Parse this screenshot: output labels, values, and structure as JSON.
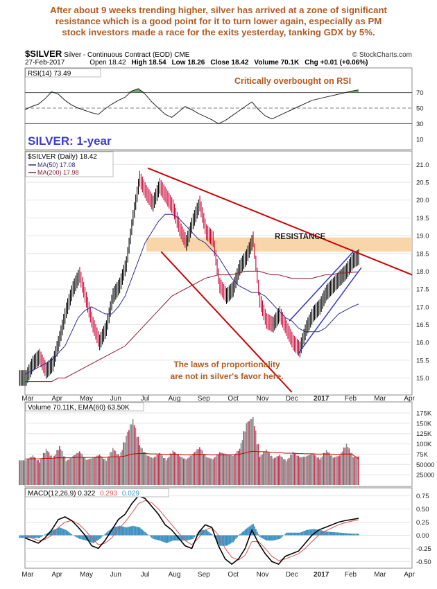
{
  "headline": {
    "line1": "After about 9 weeks trending higher, silver has arrived at a zone of significant",
    "line2": "resistance which is a good point for it to turn lower again, especially as PM",
    "line3": "stock investors made a race for the exits yesterday, tanking GDX by 5%."
  },
  "header": {
    "symbol": "$SILVER",
    "name": "Silver - Continuous Contract (EOD)",
    "exchange": "CME",
    "logo": "© StockCharts.com",
    "date": "27-Feb-2017",
    "open": "Open 18.42",
    "high": "High 18.54",
    "low": "Low 18.26",
    "close": "Close 18.42",
    "volume": "Volume 70.1K",
    "chg": "Chg +0.01 (+0.06%)"
  },
  "colors": {
    "text_annotation": "#b35a1f",
    "blue_title": "#3a3ad6",
    "price_up": "#000000",
    "price_down": "#cc0033",
    "ma50": "#2b2b8f",
    "ma200": "#8b1a2a",
    "trendline": "#cc0000",
    "channel": "#3333cc",
    "resistance_band": "#f7d2a0",
    "macd_line": "#000000",
    "signal_line": "#e05050",
    "histogram": "#3a8fc0",
    "volume_bar": "#8a8a8a"
  },
  "chart_data": [
    {
      "type": "line",
      "panel": "rsi",
      "legend": "RSI(14) 73.49",
      "annotation": "Critically overbought on RSI",
      "ylim": [
        0,
        100
      ],
      "yticks": [
        "70",
        "50",
        "30",
        "10"
      ],
      "ytick_values": [
        70,
        50,
        30,
        10
      ],
      "reference_lines": [
        70,
        50,
        30
      ],
      "x": [
        0,
        5,
        10,
        15,
        20,
        25,
        30,
        35,
        40,
        45,
        50,
        55,
        60,
        65,
        70,
        75,
        80,
        85,
        90,
        95,
        100,
        105,
        110,
        115,
        120,
        125,
        130,
        135,
        140,
        145,
        150,
        155,
        160,
        165,
        170,
        175,
        180,
        185,
        190,
        195,
        200,
        205,
        210,
        215,
        220,
        225,
        230,
        235,
        240,
        245,
        250
      ],
      "values": [
        48,
        52,
        55,
        62,
        71,
        68,
        60,
        54,
        50,
        47,
        44,
        42,
        49,
        55,
        60,
        64,
        72,
        75,
        68,
        58,
        50,
        42,
        38,
        45,
        52,
        48,
        43,
        39,
        35,
        30,
        34,
        40,
        46,
        52,
        58,
        48,
        40,
        36,
        40,
        44,
        48,
        52,
        56,
        60,
        62,
        64,
        66,
        68,
        70,
        72,
        73.49
      ]
    },
    {
      "type": "line",
      "panel": "price",
      "title": "SILVER: 1-year",
      "legend": [
        "$SILVER (Daily) 18.42",
        "MA(50) 17.08",
        "MA(200) 17.98"
      ],
      "annotation_resistance": "RESISTANCE",
      "annotation_bottom": [
        "The laws of proportionality",
        "are not in silver's favor here."
      ],
      "ylim": [
        14.6,
        21.3
      ],
      "yticks": [
        "21.0",
        "20.5",
        "20.0",
        "19.5",
        "19.0",
        "18.5",
        "18.0",
        "17.5",
        "17.0",
        "16.5",
        "16.0",
        "15.5",
        "15.0"
      ],
      "ytick_values": [
        21.0,
        20.5,
        20.0,
        19.5,
        19.0,
        18.5,
        18.0,
        17.5,
        17.0,
        16.5,
        16.0,
        15.5,
        15.0
      ],
      "xlim": [
        0,
        290
      ],
      "x": [
        0,
        5,
        10,
        15,
        20,
        25,
        30,
        35,
        40,
        45,
        50,
        55,
        60,
        65,
        70,
        75,
        80,
        85,
        90,
        95,
        100,
        105,
        110,
        115,
        120,
        125,
        130,
        135,
        140,
        145,
        150,
        155,
        160,
        165,
        170,
        175,
        180,
        185,
        190,
        195,
        200,
        205,
        210,
        215,
        220,
        225,
        230,
        235,
        240,
        245,
        250
      ],
      "close": [
        15.0,
        15.4,
        15.6,
        15.2,
        15.4,
        16.1,
        16.9,
        17.5,
        17.9,
        17.2,
        16.5,
        16.0,
        16.4,
        17.3,
        17.6,
        18.2,
        19.5,
        20.6,
        20.2,
        19.9,
        20.4,
        20.1,
        19.8,
        19.2,
        18.8,
        19.4,
        19.9,
        19.1,
        18.9,
        17.6,
        17.3,
        17.5,
        18.1,
        18.4,
        18.9,
        17.2,
        16.6,
        16.5,
        16.8,
        16.4,
        16.0,
        15.8,
        16.4,
        16.8,
        17.0,
        17.4,
        17.6,
        17.8,
        18.0,
        18.3,
        18.42
      ],
      "ma50": [
        15.1,
        15.2,
        15.3,
        15.4,
        15.5,
        15.7,
        15.9,
        16.3,
        16.7,
        16.9,
        17.0,
        16.9,
        16.8,
        16.8,
        17.0,
        17.3,
        17.8,
        18.3,
        18.8,
        19.1,
        19.4,
        19.6,
        19.6,
        19.5,
        19.3,
        19.1,
        18.9,
        18.8,
        18.6,
        18.4,
        18.1,
        17.8,
        17.6,
        17.5,
        17.4,
        17.4,
        17.3,
        17.1,
        16.9,
        16.7,
        16.6,
        16.4,
        16.3,
        16.3,
        16.3,
        16.4,
        16.6,
        16.8,
        16.9,
        17.0,
        17.08
      ],
      "ma200": [
        14.9,
        14.9,
        14.9,
        14.9,
        14.9,
        15.0,
        15.0,
        15.1,
        15.2,
        15.3,
        15.4,
        15.5,
        15.6,
        15.7,
        15.8,
        15.9,
        16.1,
        16.3,
        16.5,
        16.7,
        16.9,
        17.1,
        17.3,
        17.4,
        17.5,
        17.6,
        17.7,
        17.8,
        17.85,
        17.9,
        17.9,
        17.9,
        17.95,
        18.0,
        18.0,
        18.0,
        17.95,
        17.9,
        17.9,
        17.85,
        17.8,
        17.8,
        17.8,
        17.8,
        17.85,
        17.9,
        17.9,
        17.95,
        17.95,
        17.97,
        17.98
      ],
      "resistance_zone": [
        18.55,
        18.95
      ],
      "downtrend_upper": {
        "from": [
          92,
          20.9
        ],
        "to": [
          290,
          17.9
        ]
      },
      "downtrend_lower": {
        "from": [
          102,
          18.55
        ],
        "to": [
          200,
          14.6
        ]
      },
      "channel_lower": {
        "from": [
          205,
          15.7
        ],
        "to": [
          252,
          18.1
        ]
      },
      "channel_upper": {
        "from": [
          198,
          16.6
        ],
        "to": [
          246,
          18.55
        ]
      }
    },
    {
      "type": "bar",
      "panel": "volume",
      "legend": "Volume 70.11K, EMA(60) 63.50K",
      "ylim": [
        0,
        175000
      ],
      "yticks": [
        "175K",
        "150K",
        "125K",
        "100K",
        "75K",
        "50000",
        "25000"
      ],
      "ytick_values": [
        175000,
        150000,
        125000,
        100000,
        75000,
        50000,
        25000
      ],
      "x": [
        0,
        5,
        10,
        15,
        20,
        25,
        30,
        35,
        40,
        45,
        50,
        55,
        60,
        65,
        70,
        75,
        80,
        85,
        90,
        95,
        100,
        105,
        110,
        115,
        120,
        125,
        130,
        135,
        140,
        145,
        150,
        155,
        160,
        165,
        170,
        175,
        180,
        185,
        190,
        195,
        200,
        205,
        210,
        215,
        220,
        225,
        230,
        235,
        240,
        245,
        250
      ],
      "values": [
        60000,
        72000,
        55000,
        88000,
        64000,
        95000,
        58000,
        70000,
        82000,
        61000,
        66000,
        74000,
        59000,
        90000,
        68000,
        120000,
        160000,
        97000,
        73000,
        65000,
        78000,
        60000,
        84000,
        70000,
        62000,
        76000,
        92000,
        68000,
        63000,
        80000,
        75000,
        71000,
        88000,
        150000,
        165000,
        69000,
        86000,
        64000,
        73000,
        58000,
        81000,
        67000,
        70000,
        77000,
        62000,
        85000,
        66000,
        72000,
        100000,
        68000,
        70110
      ],
      "ema": [
        63000,
        64000,
        63500,
        65000,
        65000,
        66500,
        66000,
        66500,
        67500,
        67000,
        67000,
        67500,
        67000,
        68500,
        68500,
        70500,
        75000,
        76500,
        76500,
        75500,
        75500,
        74500,
        75000,
        74500,
        73500,
        73500,
        74500,
        74000,
        73000,
        73500,
        73500,
        73500,
        74000,
        78000,
        82000,
        81000,
        81000,
        79500,
        79000,
        77500,
        77500,
        76500,
        76000,
        76000,
        75000,
        75500,
        75000,
        74500,
        75500,
        75000,
        63500
      ]
    },
    {
      "type": "line",
      "panel": "macd",
      "legend": [
        "MACD(12,26,9) 0.322",
        "0.293",
        "0.029"
      ],
      "ylim": [
        -0.6,
        0.85
      ],
      "yticks": [
        "0.75",
        "0.50",
        "0.25",
        "0.00",
        "-0.25",
        "-0.50"
      ],
      "ytick_values": [
        0.75,
        0.5,
        0.25,
        0,
        -0.25,
        -0.5
      ],
      "x": [
        0,
        5,
        10,
        15,
        20,
        25,
        30,
        35,
        40,
        45,
        50,
        55,
        60,
        65,
        70,
        75,
        80,
        85,
        90,
        95,
        100,
        105,
        110,
        115,
        120,
        125,
        130,
        135,
        140,
        145,
        150,
        155,
        160,
        165,
        170,
        175,
        180,
        185,
        190,
        195,
        200,
        205,
        210,
        215,
        220,
        225,
        230,
        235,
        240,
        245,
        250
      ],
      "macd": [
        -0.05,
        -0.1,
        -0.15,
        -0.05,
        0.1,
        0.3,
        0.35,
        0.28,
        0.15,
        0.0,
        -0.2,
        -0.25,
        -0.1,
        0.1,
        0.3,
        0.4,
        0.6,
        0.75,
        0.7,
        0.55,
        0.4,
        0.2,
        0.1,
        -0.05,
        -0.2,
        -0.25,
        0.05,
        0.2,
        0.15,
        -0.2,
        -0.45,
        -0.55,
        -0.45,
        -0.25,
        0.1,
        -0.15,
        -0.35,
        -0.5,
        -0.55,
        -0.4,
        -0.35,
        -0.3,
        -0.15,
        0.0,
        0.1,
        0.15,
        0.2,
        0.25,
        0.28,
        0.3,
        0.322
      ],
      "signal": [
        0.0,
        -0.05,
        -0.1,
        -0.08,
        0.0,
        0.15,
        0.25,
        0.28,
        0.22,
        0.1,
        -0.05,
        -0.18,
        -0.15,
        -0.05,
        0.12,
        0.25,
        0.42,
        0.6,
        0.66,
        0.62,
        0.5,
        0.35,
        0.2,
        0.05,
        -0.1,
        -0.18,
        -0.05,
        0.1,
        0.15,
        0.0,
        -0.25,
        -0.42,
        -0.47,
        -0.38,
        -0.12,
        -0.12,
        -0.25,
        -0.4,
        -0.48,
        -0.45,
        -0.4,
        -0.35,
        -0.25,
        -0.12,
        0.0,
        0.08,
        0.14,
        0.2,
        0.24,
        0.27,
        0.293
      ],
      "histogram": [
        -0.05,
        -0.05,
        -0.05,
        0.03,
        0.1,
        0.15,
        0.1,
        0.0,
        -0.07,
        -0.1,
        -0.15,
        -0.07,
        0.05,
        0.15,
        0.18,
        0.15,
        0.18,
        0.15,
        0.04,
        -0.07,
        -0.1,
        -0.15,
        -0.1,
        -0.1,
        -0.1,
        -0.07,
        0.1,
        0.1,
        0.0,
        -0.2,
        -0.2,
        -0.13,
        0.02,
        0.13,
        0.22,
        -0.03,
        -0.1,
        -0.1,
        -0.07,
        0.05,
        0.05,
        0.05,
        0.1,
        0.12,
        0.1,
        0.07,
        0.06,
        0.05,
        0.04,
        0.03,
        0.029
      ]
    }
  ],
  "x_axis": {
    "labels": [
      "Mar",
      "Apr",
      "May",
      "Jun",
      "Jul",
      "Aug",
      "Sep",
      "Oct",
      "Nov",
      "Dec",
      "2017",
      "Feb",
      "Mar",
      "Apr"
    ],
    "label_x": [
      2,
      24,
      46,
      68,
      90,
      112,
      134,
      156,
      178,
      200,
      222,
      244,
      266,
      288
    ],
    "bold": [
      "2017"
    ]
  }
}
